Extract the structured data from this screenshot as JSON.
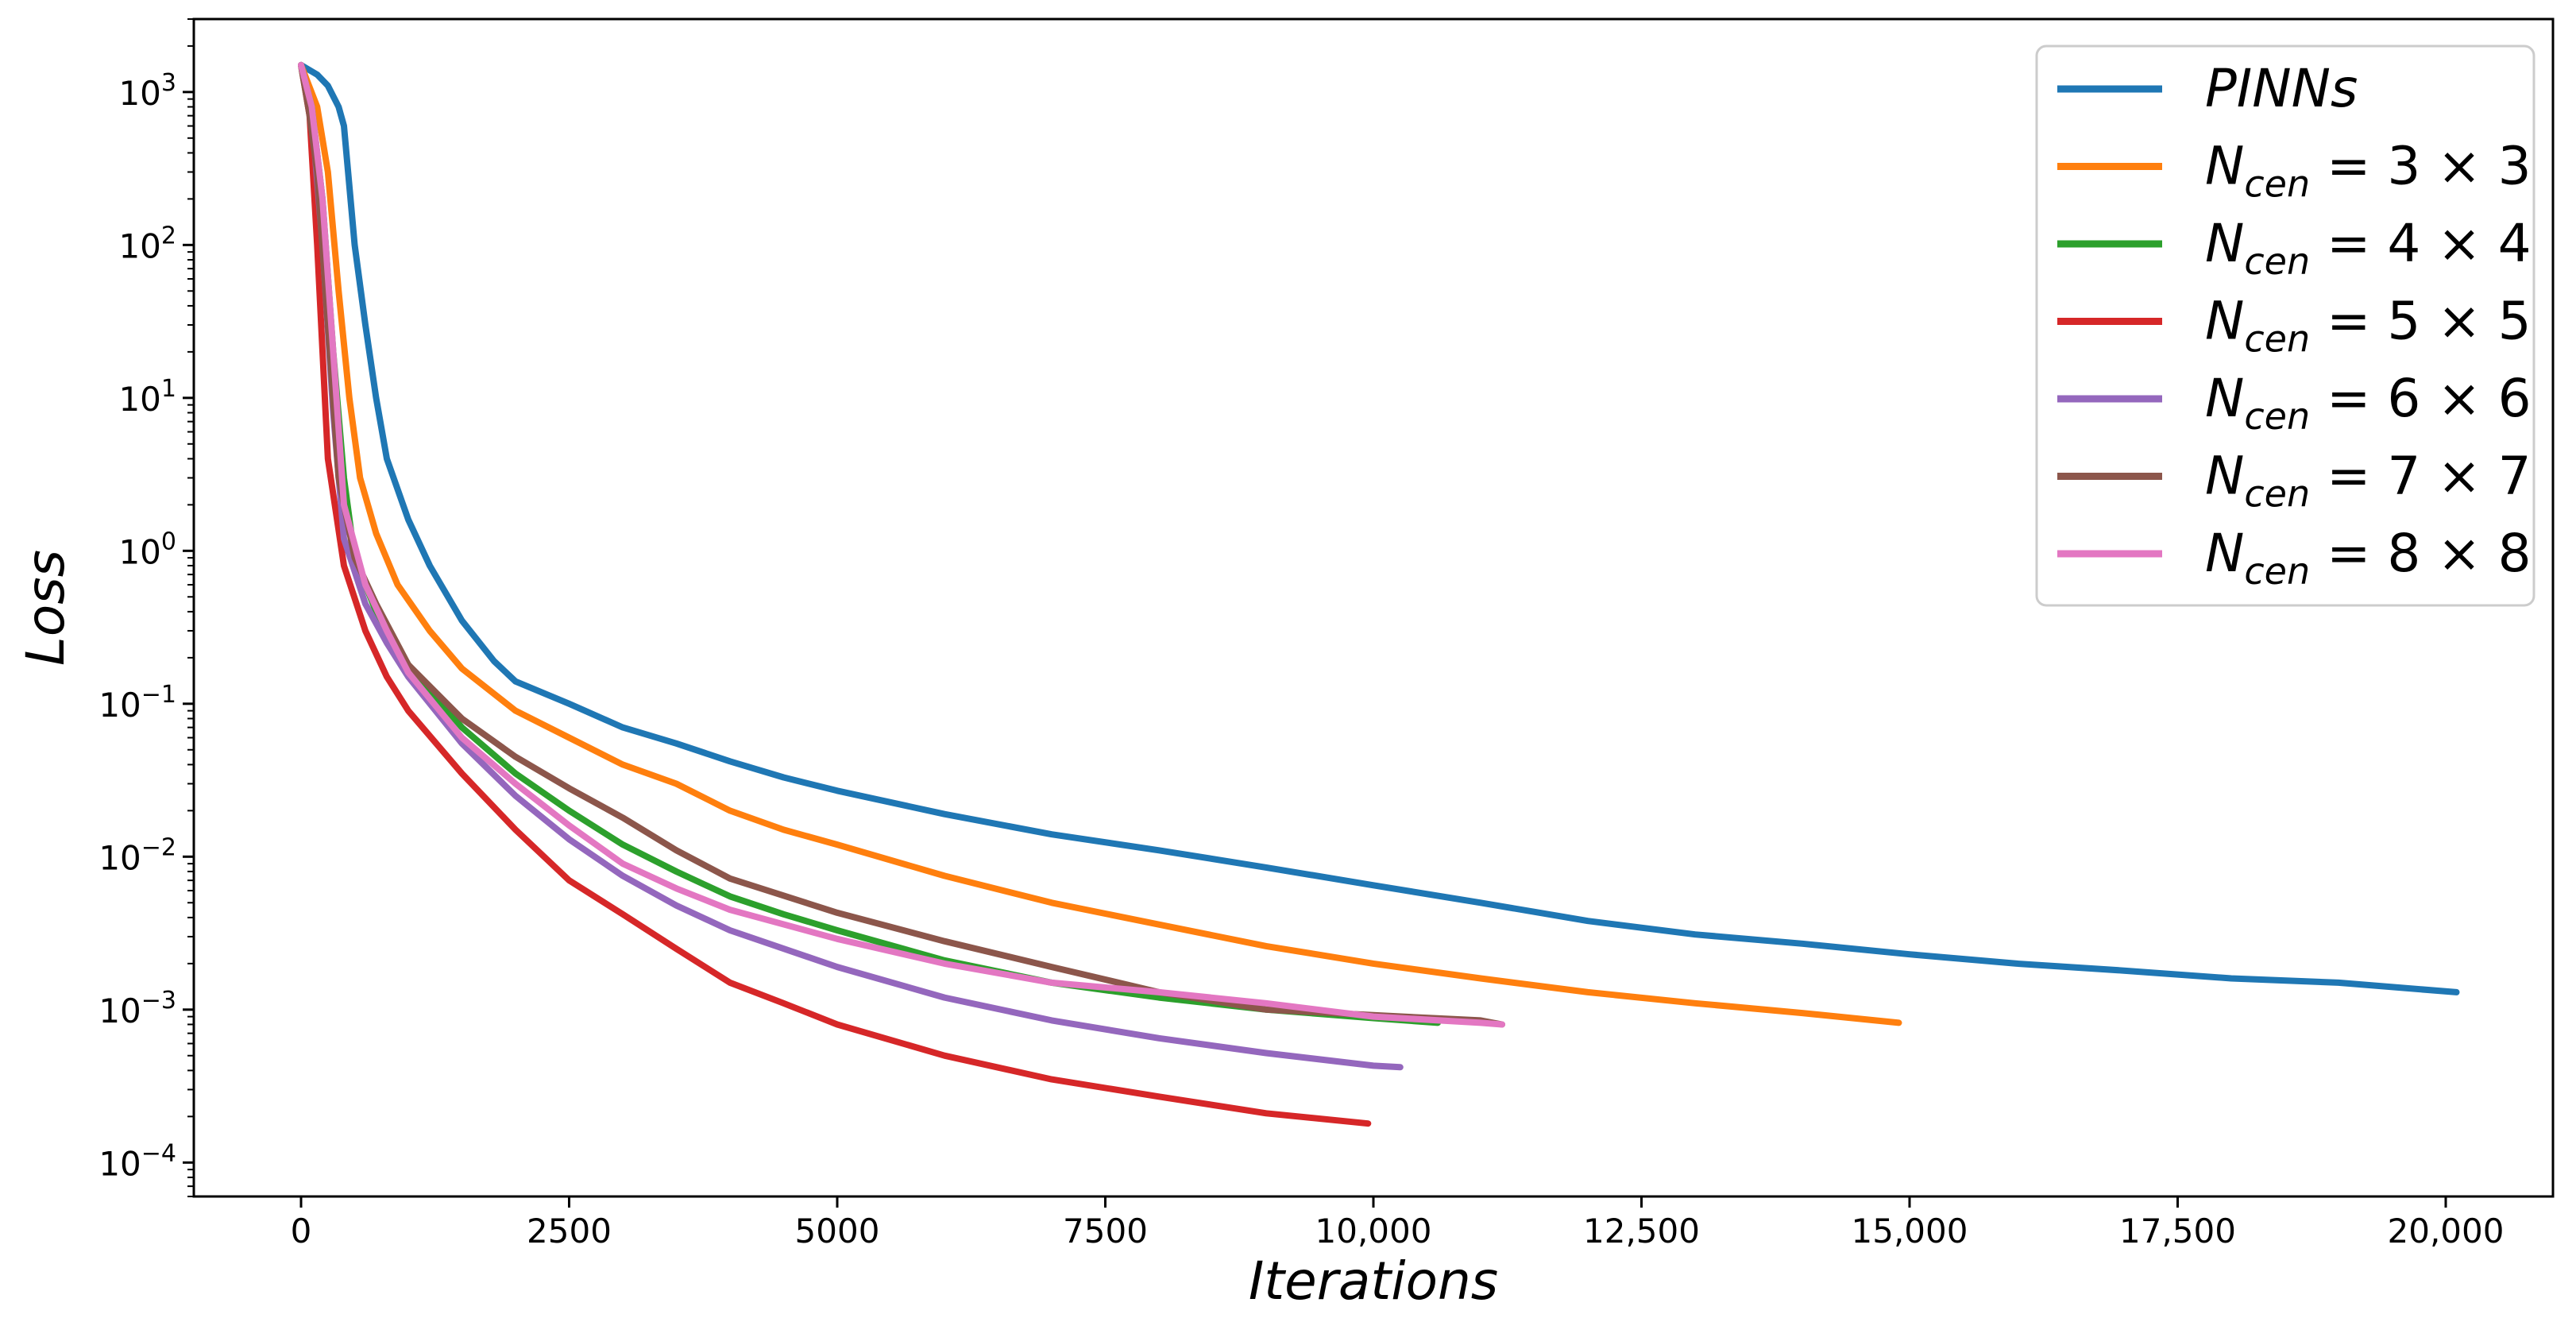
{
  "chart_data": {
    "type": "line",
    "title": "",
    "xlabel": "Iterations",
    "ylabel": "Loss",
    "xlim": [
      -1000,
      21000
    ],
    "ylim": [
      6e-05,
      3000
    ],
    "yscale": "log",
    "grid": false,
    "legend_position": "top-right",
    "x_ticks": [
      {
        "value": 0,
        "label": "0"
      },
      {
        "value": 2500,
        "label": "2500"
      },
      {
        "value": 5000,
        "label": "5000"
      },
      {
        "value": 7500,
        "label": "7500"
      },
      {
        "value": 10000,
        "label": "10,000"
      },
      {
        "value": 12500,
        "label": "12,500"
      },
      {
        "value": 15000,
        "label": "15,000"
      },
      {
        "value": 17500,
        "label": "17,500"
      },
      {
        "value": 20000,
        "label": "20,000"
      }
    ],
    "y_ticks": [
      {
        "value": 0.0001,
        "base": "10",
        "exp": "−4"
      },
      {
        "value": 0.001,
        "base": "10",
        "exp": "−3"
      },
      {
        "value": 0.01,
        "base": "10",
        "exp": "−2"
      },
      {
        "value": 0.1,
        "base": "10",
        "exp": "−1"
      },
      {
        "value": 1,
        "base": "10",
        "exp": "0"
      },
      {
        "value": 10,
        "base": "10",
        "exp": "1"
      },
      {
        "value": 100,
        "base": "10",
        "exp": "2"
      },
      {
        "value": 1000,
        "base": "10",
        "exp": "3"
      }
    ],
    "series": [
      {
        "name": "PINNs",
        "label_main": "PINNs",
        "label_sub": "",
        "label_rest": "",
        "color": "#1f77b4",
        "points": [
          [
            0,
            1500
          ],
          [
            150,
            1300
          ],
          [
            250,
            1100
          ],
          [
            350,
            800
          ],
          [
            400,
            600
          ],
          [
            500,
            100
          ],
          [
            600,
            30
          ],
          [
            700,
            10
          ],
          [
            800,
            4
          ],
          [
            1000,
            1.6
          ],
          [
            1200,
            0.8
          ],
          [
            1500,
            0.35
          ],
          [
            1800,
            0.19
          ],
          [
            2000,
            0.14
          ],
          [
            2500,
            0.1
          ],
          [
            3000,
            0.07
          ],
          [
            3500,
            0.055
          ],
          [
            4000,
            0.042
          ],
          [
            4500,
            0.033
          ],
          [
            5000,
            0.027
          ],
          [
            6000,
            0.019
          ],
          [
            7000,
            0.014
          ],
          [
            8000,
            0.011
          ],
          [
            9000,
            0.0085
          ],
          [
            10000,
            0.0065
          ],
          [
            11000,
            0.005
          ],
          [
            12000,
            0.0038
          ],
          [
            13000,
            0.0031
          ],
          [
            14000,
            0.0027
          ],
          [
            15000,
            0.0023
          ],
          [
            16000,
            0.002
          ],
          [
            17000,
            0.0018
          ],
          [
            18000,
            0.0016
          ],
          [
            19000,
            0.0015
          ],
          [
            20100,
            0.0013
          ]
        ]
      },
      {
        "name": "N_cen = 3 × 3",
        "label_main": "N",
        "label_sub": "cen",
        "label_rest": " = 3 × 3",
        "color": "#ff7f0e",
        "points": [
          [
            0,
            1500
          ],
          [
            150,
            800
          ],
          [
            250,
            300
          ],
          [
            350,
            50
          ],
          [
            450,
            10
          ],
          [
            550,
            3
          ],
          [
            700,
            1.3
          ],
          [
            900,
            0.6
          ],
          [
            1200,
            0.3
          ],
          [
            1500,
            0.17
          ],
          [
            2000,
            0.09
          ],
          [
            2500,
            0.06
          ],
          [
            3000,
            0.04
          ],
          [
            3500,
            0.03
          ],
          [
            4000,
            0.02
          ],
          [
            4500,
            0.015
          ],
          [
            5000,
            0.012
          ],
          [
            6000,
            0.0075
          ],
          [
            7000,
            0.005
          ],
          [
            8000,
            0.0036
          ],
          [
            9000,
            0.0026
          ],
          [
            10000,
            0.002
          ],
          [
            11000,
            0.0016
          ],
          [
            12000,
            0.0013
          ],
          [
            13000,
            0.0011
          ],
          [
            14000,
            0.00095
          ],
          [
            14900,
            0.00082
          ]
        ]
      },
      {
        "name": "N_cen = 4 × 4",
        "label_main": "N",
        "label_sub": "cen",
        "label_rest": " = 4 × 4",
        "color": "#2ca02c",
        "points": [
          [
            0,
            1500
          ],
          [
            100,
            800
          ],
          [
            200,
            200
          ],
          [
            300,
            20
          ],
          [
            400,
            3
          ],
          [
            500,
            0.9
          ],
          [
            700,
            0.4
          ],
          [
            1000,
            0.18
          ],
          [
            1500,
            0.07
          ],
          [
            2000,
            0.035
          ],
          [
            2500,
            0.02
          ],
          [
            3000,
            0.012
          ],
          [
            3500,
            0.008
          ],
          [
            4000,
            0.0055
          ],
          [
            4500,
            0.0042
          ],
          [
            5000,
            0.0033
          ],
          [
            6000,
            0.0021
          ],
          [
            7000,
            0.0015
          ],
          [
            8000,
            0.0012
          ],
          [
            9000,
            0.001
          ],
          [
            10000,
            0.00088
          ],
          [
            10600,
            0.00082
          ]
        ]
      },
      {
        "name": "N_cen = 5 × 5",
        "label_main": "N",
        "label_sub": "cen",
        "label_rest": " = 5 × 5",
        "color": "#d62728",
        "points": [
          [
            0,
            1500
          ],
          [
            80,
            700
          ],
          [
            150,
            100
          ],
          [
            250,
            4
          ],
          [
            400,
            0.8
          ],
          [
            600,
            0.3
          ],
          [
            800,
            0.15
          ],
          [
            1000,
            0.09
          ],
          [
            1500,
            0.035
          ],
          [
            2000,
            0.015
          ],
          [
            2500,
            0.007
          ],
          [
            3000,
            0.0042
          ],
          [
            3500,
            0.0025
          ],
          [
            4000,
            0.0015
          ],
          [
            4500,
            0.0011
          ],
          [
            5000,
            0.0008
          ],
          [
            6000,
            0.0005
          ],
          [
            7000,
            0.00035
          ],
          [
            8000,
            0.00027
          ],
          [
            9000,
            0.00021
          ],
          [
            9950,
            0.00018
          ]
        ]
      },
      {
        "name": "N_cen = 6 × 6",
        "label_main": "N",
        "label_sub": "cen",
        "label_rest": " = 6 × 6",
        "color": "#9467bd",
        "points": [
          [
            0,
            1500
          ],
          [
            100,
            700
          ],
          [
            200,
            100
          ],
          [
            300,
            8
          ],
          [
            400,
            1.2
          ],
          [
            600,
            0.45
          ],
          [
            800,
            0.25
          ],
          [
            1000,
            0.15
          ],
          [
            1500,
            0.055
          ],
          [
            2000,
            0.025
          ],
          [
            2500,
            0.013
          ],
          [
            3000,
            0.0075
          ],
          [
            3500,
            0.0048
          ],
          [
            4000,
            0.0033
          ],
          [
            5000,
            0.0019
          ],
          [
            6000,
            0.0012
          ],
          [
            7000,
            0.00085
          ],
          [
            8000,
            0.00065
          ],
          [
            9000,
            0.00052
          ],
          [
            10000,
            0.00043
          ],
          [
            10250,
            0.00042
          ]
        ]
      },
      {
        "name": "N_cen = 7 × 7",
        "label_main": "N",
        "label_sub": "cen",
        "label_rest": " = 7 × 7",
        "color": "#8c564b",
        "points": [
          [
            0,
            1500
          ],
          [
            80,
            700
          ],
          [
            150,
            300
          ],
          [
            250,
            30
          ],
          [
            350,
            3
          ],
          [
            500,
            0.9
          ],
          [
            700,
            0.45
          ],
          [
            1000,
            0.18
          ],
          [
            1500,
            0.08
          ],
          [
            2000,
            0.045
          ],
          [
            2500,
            0.028
          ],
          [
            3000,
            0.018
          ],
          [
            3500,
            0.011
          ],
          [
            4000,
            0.0072
          ],
          [
            5000,
            0.0043
          ],
          [
            6000,
            0.0028
          ],
          [
            7000,
            0.0019
          ],
          [
            8000,
            0.0013
          ],
          [
            9000,
            0.001
          ],
          [
            10000,
            0.00092
          ],
          [
            11000,
            0.00085
          ],
          [
            11200,
            0.0008
          ]
        ]
      },
      {
        "name": "N_cen = 8 × 8",
        "label_main": "N",
        "label_sub": "cen",
        "label_rest": " = 8 × 8",
        "color": "#e377c2",
        "points": [
          [
            0,
            1500
          ],
          [
            100,
            800
          ],
          [
            200,
            200
          ],
          [
            300,
            20
          ],
          [
            400,
            2
          ],
          [
            600,
            0.6
          ],
          [
            800,
            0.3
          ],
          [
            1000,
            0.16
          ],
          [
            1500,
            0.06
          ],
          [
            2000,
            0.03
          ],
          [
            2500,
            0.016
          ],
          [
            3000,
            0.009
          ],
          [
            3500,
            0.0062
          ],
          [
            4000,
            0.0045
          ],
          [
            5000,
            0.0029
          ],
          [
            6000,
            0.002
          ],
          [
            7000,
            0.0015
          ],
          [
            8000,
            0.0013
          ],
          [
            9000,
            0.0011
          ],
          [
            10000,
            0.0009
          ],
          [
            11000,
            0.00082
          ],
          [
            11200,
            0.0008
          ]
        ]
      }
    ]
  }
}
